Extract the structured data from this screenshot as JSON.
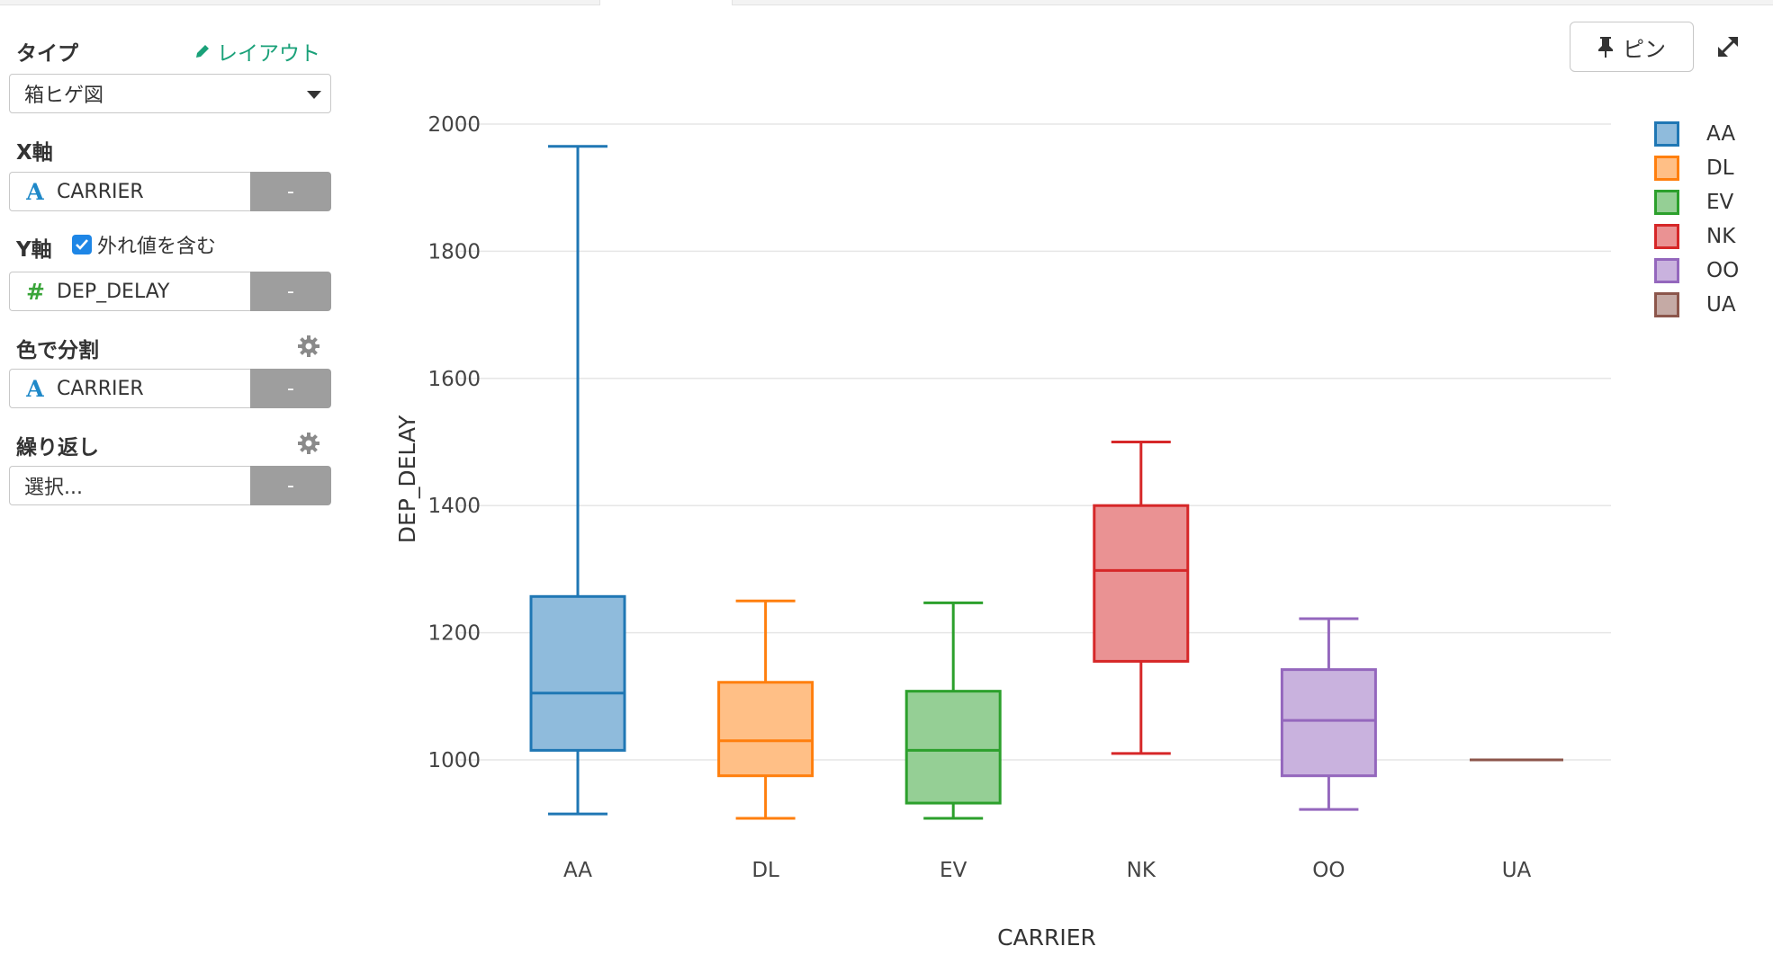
{
  "panel": {
    "type_label": "タイプ",
    "layout_link": "レイアウト",
    "chart_type_value": "箱ヒゲ図",
    "x_axis_label": "X軸",
    "x_axis_field": "CARRIER",
    "y_axis_label": "Y軸",
    "include_outliers_label": "外れ値を含む",
    "include_outliers": true,
    "y_axis_field": "DEP_DELAY",
    "color_split_label": "色で分割",
    "color_field": "CARRIER",
    "repeat_label": "繰り返し",
    "repeat_placeholder": "選択...",
    "remove_label": "-"
  },
  "toolbar": {
    "pin_label": "ピン"
  },
  "chart_data": {
    "type": "box",
    "xlabel": "CARRIER",
    "ylabel": "DEP_DELAY",
    "ylim": [
      850,
      2060
    ],
    "yticks": [
      1000,
      1200,
      1400,
      1600,
      1800,
      2000
    ],
    "grid": true,
    "legend_position": "top-right",
    "categories": [
      "AA",
      "DL",
      "EV",
      "NK",
      "OO",
      "UA"
    ],
    "series": [
      {
        "name": "AA",
        "color": "#1f77b4",
        "fill": "#8fbbdc",
        "min": 915,
        "q1": 1015,
        "median": 1105,
        "q3": 1257,
        "max": 1965
      },
      {
        "name": "DL",
        "color": "#ff7f0e",
        "fill": "#ffbf86",
        "min": 908,
        "q1": 975,
        "median": 1030,
        "q3": 1122,
        "max": 1250
      },
      {
        "name": "EV",
        "color": "#2ca02c",
        "fill": "#95cf95",
        "min": 908,
        "q1": 932,
        "median": 1015,
        "q3": 1108,
        "max": 1247
      },
      {
        "name": "NK",
        "color": "#d62728",
        "fill": "#ea9293",
        "min": 1010,
        "q1": 1155,
        "median": 1298,
        "q3": 1400,
        "max": 1500
      },
      {
        "name": "OO",
        "color": "#9467bd",
        "fill": "#c9b2de",
        "min": 922,
        "q1": 975,
        "median": 1062,
        "q3": 1142,
        "max": 1222
      },
      {
        "name": "UA",
        "color": "#8c564b",
        "fill": "#c5aaa5",
        "min": 1000,
        "q1": 1000,
        "median": 1000,
        "q3": 1000,
        "max": 1000
      }
    ]
  }
}
